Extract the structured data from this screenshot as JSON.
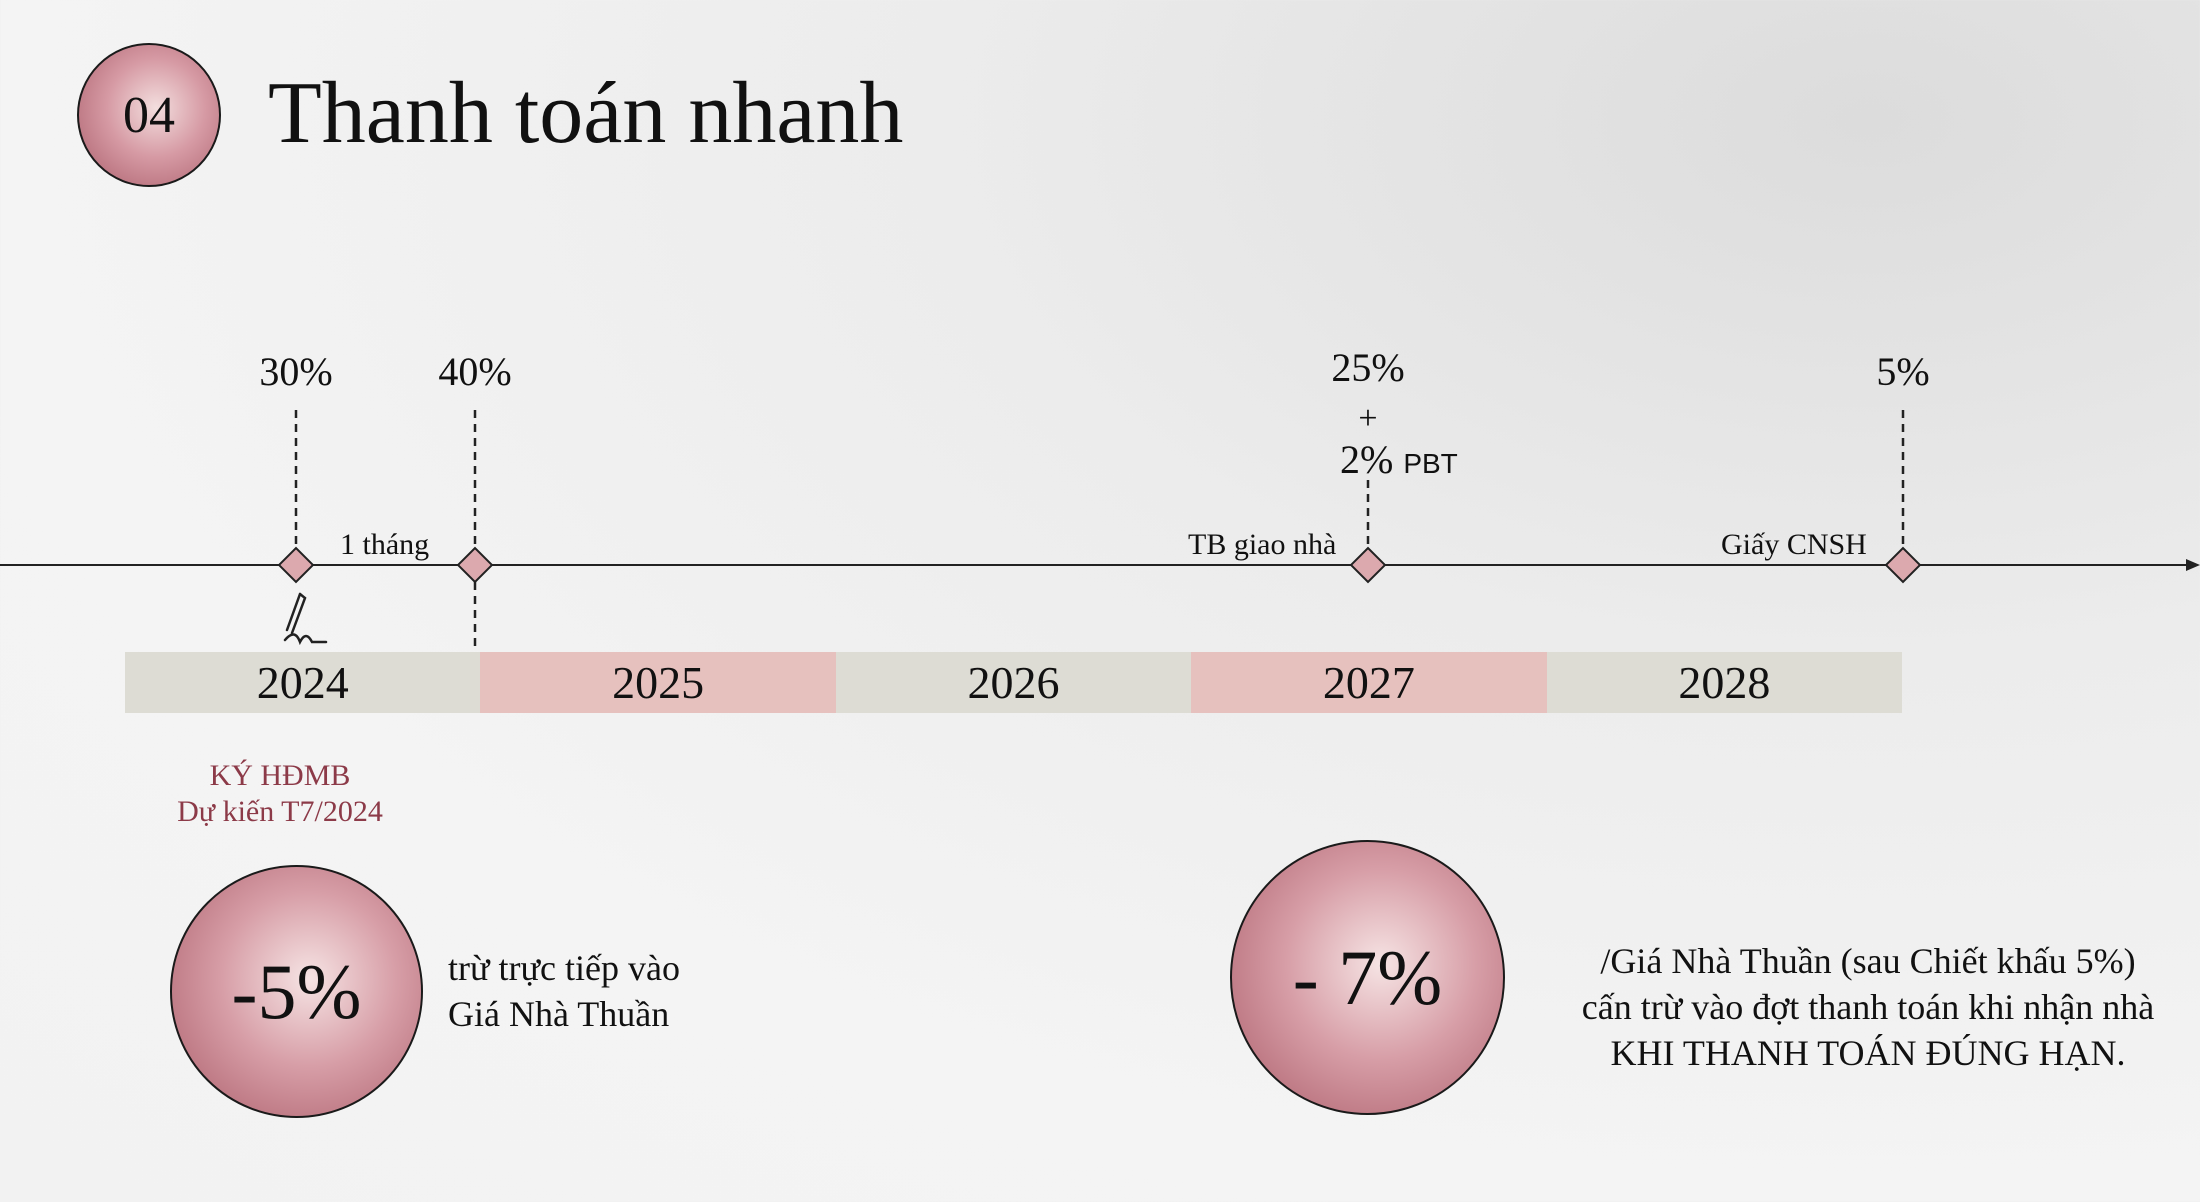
{
  "badge": {
    "number": "04"
  },
  "title": "Thanh toán nhanh",
  "timeline": {
    "milestones": [
      {
        "percent": "30%",
        "label": ""
      },
      {
        "percent": "40%",
        "label": "1 tháng"
      },
      {
        "percent": "25%",
        "plus": "+",
        "extra": "2%",
        "extra_suffix": "PBT",
        "label": "TB giao nhà"
      },
      {
        "percent": "5%",
        "label": "Giấy CNSH"
      }
    ],
    "years": [
      "2024",
      "2025",
      "2026",
      "2027",
      "2028"
    ],
    "signing": {
      "line1": "KÝ HĐMB",
      "line2": "Dự kiến T7/2024"
    }
  },
  "discounts": [
    {
      "value": "-5%",
      "lines": [
        "trừ trực tiếp vào",
        "Giá Nhà Thuần"
      ]
    },
    {
      "value": "- 7%",
      "lines": [
        "/Giá Nhà Thuần (sau Chiết khấu 5%)",
        "cấn trừ vào đợt thanh toán khi nhận nhà",
        "KHI THANH TOÁN ĐÚNG HẠN."
      ]
    }
  ],
  "colors": {
    "accent": "#c98d97",
    "sign_text": "#8c3a48",
    "year_grey": "#dddcd4",
    "year_pink": "#e6c1be"
  },
  "icons": {
    "signature": "signature-pen-icon"
  }
}
